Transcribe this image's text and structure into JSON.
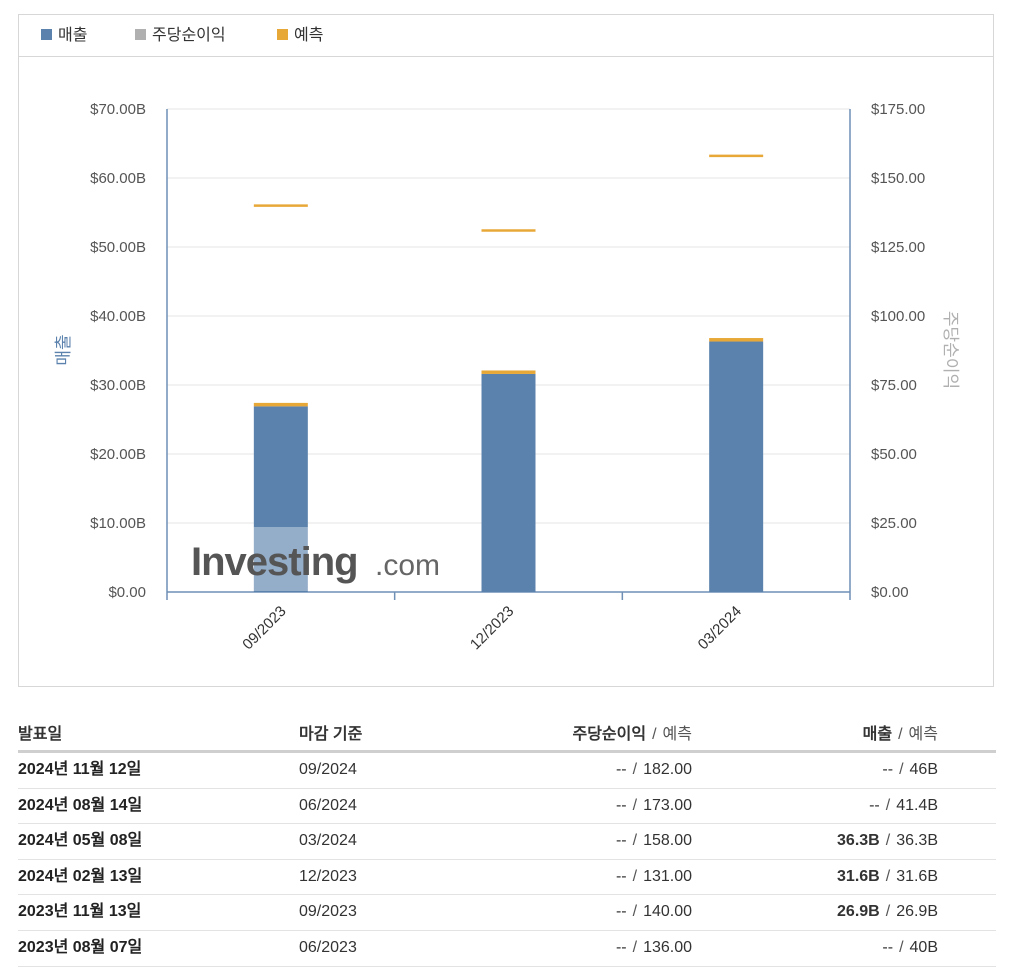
{
  "legend": [
    {
      "label": "매출",
      "color": "#5b82ad"
    },
    {
      "label": "주당순이익",
      "color": "#b0b0b0"
    },
    {
      "label": "예측",
      "color": "#e8a838"
    }
  ],
  "chart_data": {
    "type": "bar",
    "categories": [
      "09/2023",
      "12/2023",
      "03/2024"
    ],
    "series": [
      {
        "name": "매출",
        "axis": "left",
        "kind": "bar",
        "values": [
          26.9,
          31.6,
          36.3
        ],
        "color": "#5b82ad"
      },
      {
        "name": "예측",
        "axis": "left",
        "kind": "bar-cap",
        "values": [
          26.9,
          31.6,
          36.3
        ],
        "color": "#e8a838"
      },
      {
        "name": "예측",
        "axis": "right",
        "kind": "marker",
        "values": [
          140.0,
          131.0,
          158.0
        ],
        "color": "#e8a838"
      }
    ],
    "ylabel_left": "매출",
    "ylabel_right": "주당순이익",
    "ylim_left": [
      0,
      70
    ],
    "ylim_right": [
      0,
      175
    ],
    "yticks_left": [
      "$0.00",
      "$10.00B",
      "$20.00B",
      "$30.00B",
      "$40.00B",
      "$50.00B",
      "$60.00B",
      "$70.00B"
    ],
    "yticks_right": [
      "$0.00",
      "$25.00",
      "$50.00",
      "$75.00",
      "$100.00",
      "$125.00",
      "$150.00",
      "$175.00"
    ],
    "grid": true,
    "watermark": "Investing.com"
  },
  "table": {
    "headers": {
      "date": "발표일",
      "end": "마감 기준",
      "eps": "주당순이익",
      "eps_fc": "예측",
      "rev": "매출",
      "rev_fc": "예측",
      "sep": "/"
    },
    "rows": [
      {
        "date": "2024년 11월 12일",
        "end": "09/2024",
        "eps": "--",
        "eps_fc": "182.00",
        "rev": "--",
        "rev_fc": "46B"
      },
      {
        "date": "2024년 08월 14일",
        "end": "06/2024",
        "eps": "--",
        "eps_fc": "173.00",
        "rev": "--",
        "rev_fc": "41.4B"
      },
      {
        "date": "2024년 05월 08일",
        "end": "03/2024",
        "eps": "--",
        "eps_fc": "158.00",
        "rev": "36.3B",
        "rev_fc": "36.3B"
      },
      {
        "date": "2024년 02월 13일",
        "end": "12/2023",
        "eps": "--",
        "eps_fc": "131.00",
        "rev": "31.6B",
        "rev_fc": "31.6B"
      },
      {
        "date": "2023년 11월 13일",
        "end": "09/2023",
        "eps": "--",
        "eps_fc": "140.00",
        "rev": "26.9B",
        "rev_fc": "26.9B"
      },
      {
        "date": "2023년 08월 07일",
        "end": "06/2023",
        "eps": "--",
        "eps_fc": "136.00",
        "rev": "--",
        "rev_fc": "40B"
      }
    ]
  }
}
